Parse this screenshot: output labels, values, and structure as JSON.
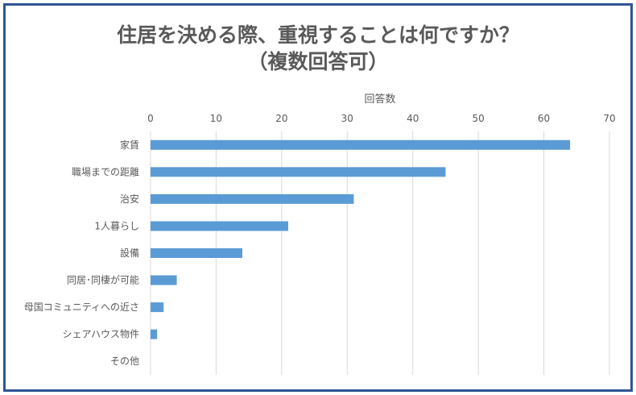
{
  "chart_data": {
    "type": "bar",
    "orientation": "horizontal",
    "title": [
      "住居を決める際、重視することは何ですか？",
      "（複数回答可）"
    ],
    "xlabel": "回答数",
    "ylabel": "",
    "xlim": [
      0,
      70
    ],
    "ticks": [
      0,
      10,
      20,
      30,
      40,
      50,
      60,
      70
    ],
    "tick_labels": [
      "0",
      "10",
      "20",
      "30",
      "40",
      "50",
      "60",
      "70"
    ],
    "grid": true,
    "axis_position": "top",
    "categories": [
      "家賃",
      "職場までの距離",
      "治安",
      "1人暮らし",
      "設備",
      "同居･同棲が可能",
      "母国コミュニティへの近さ",
      "シェアハウス物件",
      "その他"
    ],
    "values": [
      64,
      45,
      31,
      21,
      14,
      4,
      2,
      1,
      0
    ],
    "colors": {
      "bar": "#5B9BD5",
      "frame": "#2F5597",
      "grid": "#D9D9D9",
      "text": "#595959"
    }
  }
}
